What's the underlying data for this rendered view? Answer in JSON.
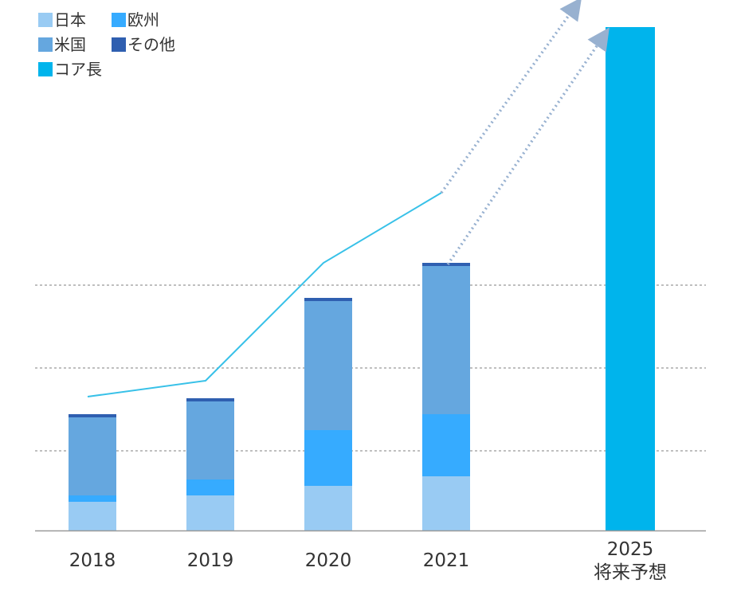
{
  "chart_data": {
    "type": "bar",
    "stacked": true,
    "categories": [
      "2018",
      "2019",
      "2020",
      "2021"
    ],
    "projection": {
      "label": [
        "2025",
        "将来予想"
      ],
      "value": 632
    },
    "series": [
      {
        "name": "日本",
        "color": "#99cbf3",
        "values": [
          36,
          44,
          56,
          68
        ]
      },
      {
        "name": "欧州",
        "color": "#36abff",
        "values": [
          8,
          20,
          70,
          78
        ]
      },
      {
        "name": "米国",
        "color": "#65a7df",
        "values": [
          98,
          98,
          162,
          186
        ]
      },
      {
        "name": "その他",
        "color": "#2f5fb0",
        "values": [
          4,
          4,
          4,
          4
        ]
      },
      {
        "name": "コア長",
        "color": "#00b4ec",
        "type": "line",
        "values": [
          168,
          188,
          336,
          424
        ]
      }
    ],
    "legend_order": [
      "日本",
      "欧州",
      "米国",
      "その他",
      "コア長"
    ],
    "legend_position": "top-left",
    "ylim": [
      0,
      660
    ],
    "gridlines": [
      100,
      204,
      308
    ],
    "projection_arrows": true,
    "colors": {
      "axis": "#999999",
      "grid": "#999999",
      "arrow": "#98b1d0",
      "text": "#333333"
    }
  }
}
